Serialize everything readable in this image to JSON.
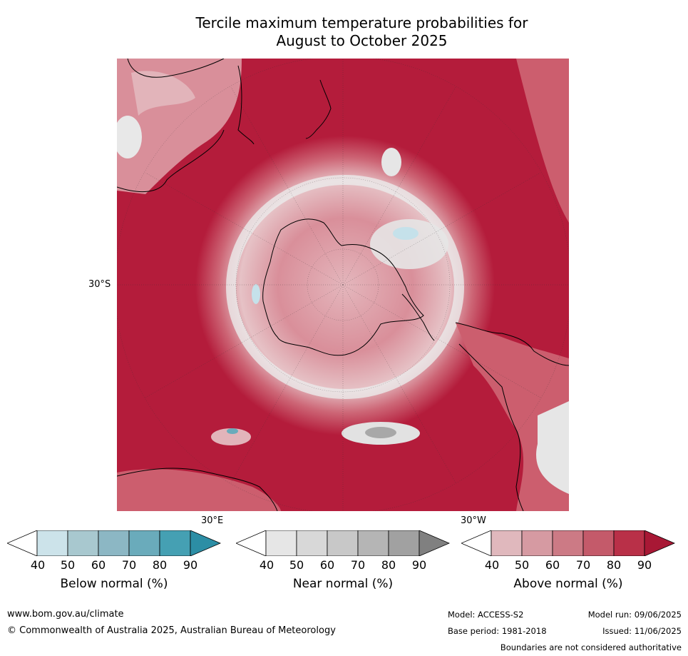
{
  "title_line1": "Tercile maximum temperature probabilities for",
  "title_line2": "August to October 2025",
  "map": {
    "projection": "south-polar stereographic",
    "lat_label": "30°S",
    "lon_label_east": "30°E",
    "lon_label_west": "30°W",
    "colors": {
      "ocean_dominant": "#b41c3b",
      "above_80": "#c4354f",
      "above_70": "#cc5e6e",
      "above_60": "#d88a96",
      "above_50": "#e2b4ba",
      "near_normal_light": "#e6e6e6",
      "near_normal_mid": "#a8a8a8",
      "below_normal_light": "#c5e1ea"
    }
  },
  "legends": [
    {
      "title": "Below normal (%)",
      "ticks": [
        "40",
        "50",
        "60",
        "70",
        "80",
        "90"
      ],
      "colors": [
        "#ffffff",
        "#cce3ea",
        "#a8c8cf",
        "#8cb7c4",
        "#6aabbb",
        "#45a0b3",
        "#2c8ea5"
      ]
    },
    {
      "title": "Near normal (%)",
      "ticks": [
        "40",
        "50",
        "60",
        "70",
        "80",
        "90"
      ],
      "colors": [
        "#ffffff",
        "#e6e6e6",
        "#d8d8d8",
        "#c8c8c8",
        "#b5b5b5",
        "#a1a1a1",
        "#808080"
      ]
    },
    {
      "title": "Above normal (%)",
      "ticks": [
        "40",
        "50",
        "60",
        "70",
        "80",
        "90"
      ],
      "colors": [
        "#ffffff",
        "#e0b8bd",
        "#d69aa2",
        "#cc7a85",
        "#c45a6a",
        "#b93048",
        "#a81835"
      ]
    }
  ],
  "footer": {
    "url": "www.bom.gov.au/climate",
    "copyright": "© Commonwealth of Australia 2025, Australian Bureau of Meteorology",
    "model": "Model: ACCESS-S2",
    "model_run": "Model run: 09/06/2025",
    "base_period": "Base period: 1981-2018",
    "issued": "Issued: 11/06/2025",
    "disclaimer": "Boundaries are not considered authoritative"
  }
}
